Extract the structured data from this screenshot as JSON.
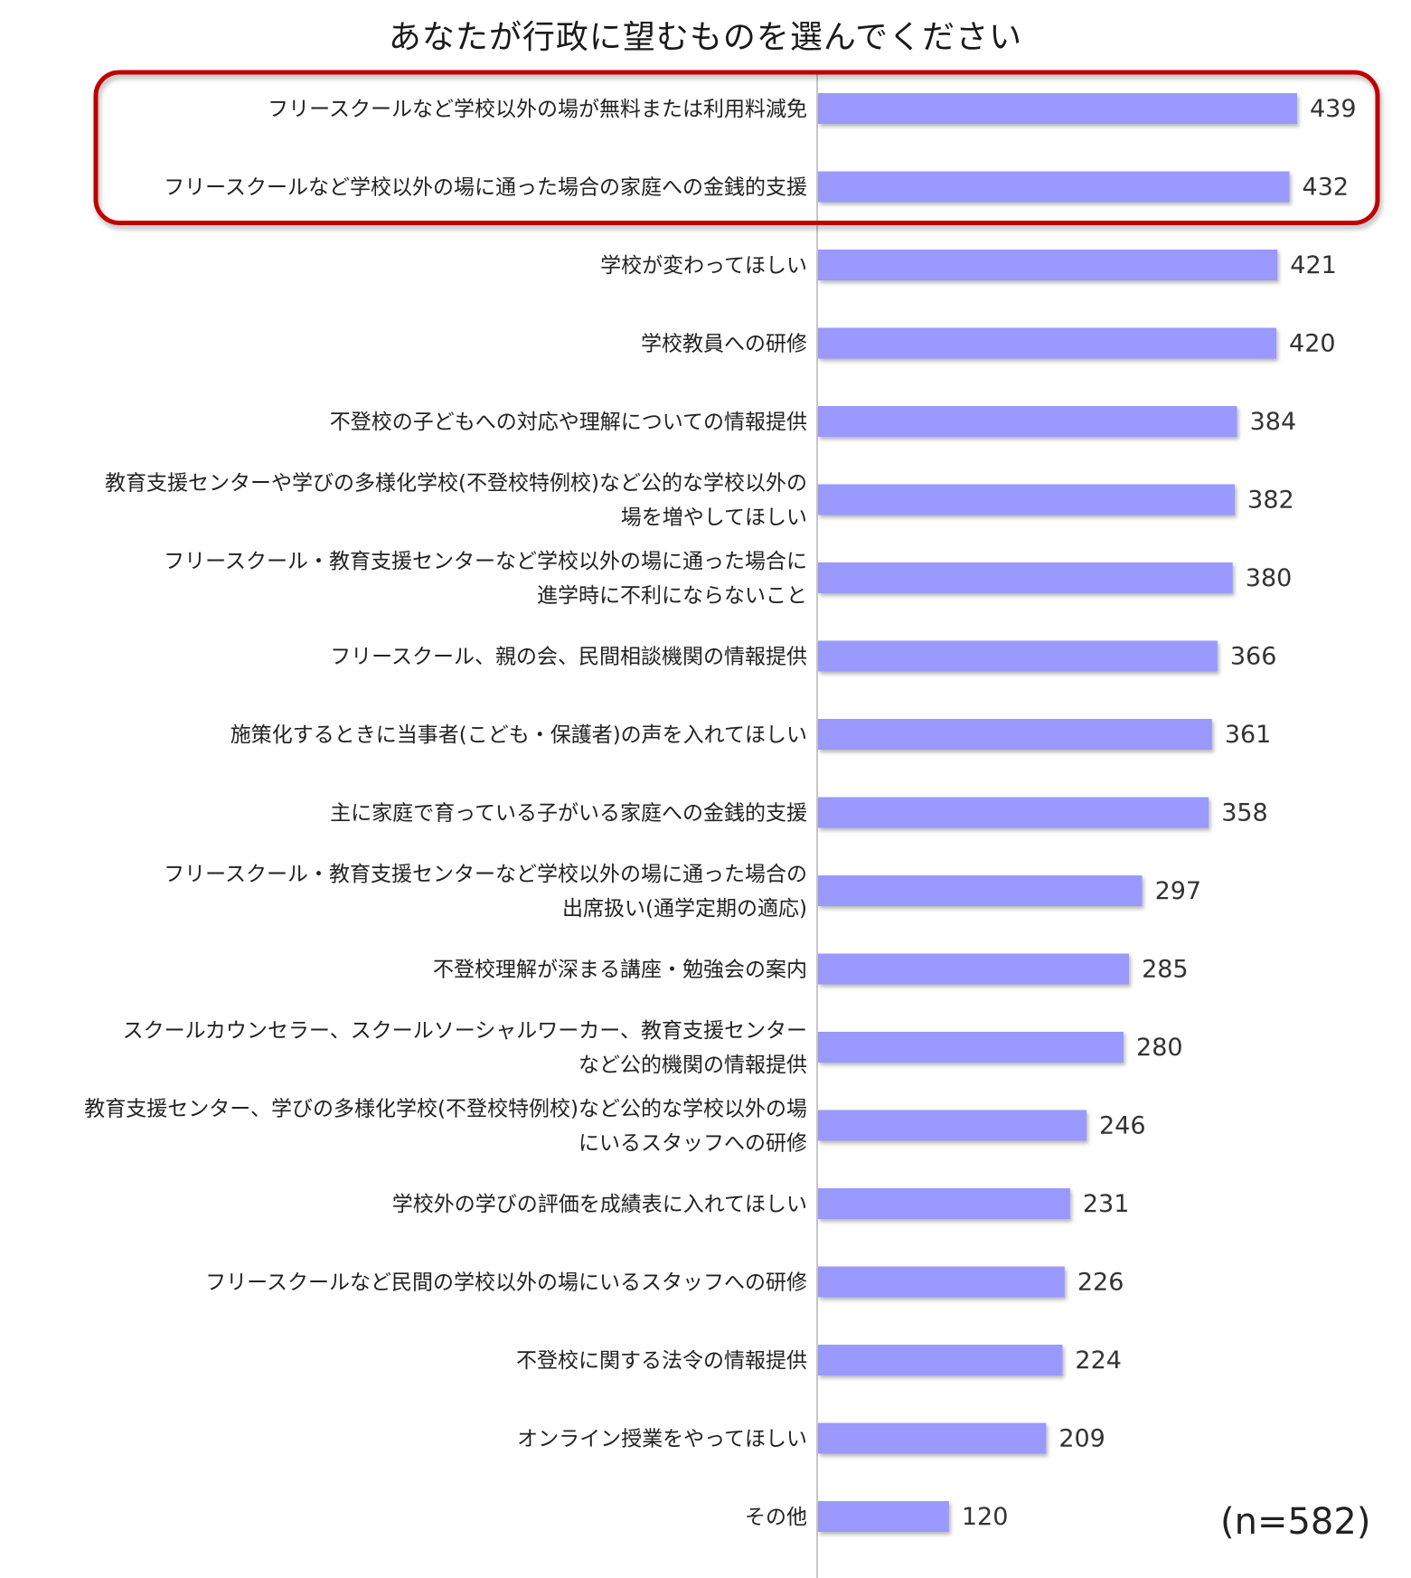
{
  "chart_data": {
    "type": "bar",
    "orientation": "horizontal",
    "title": "あなたが行政に望むものを選んでください",
    "note": "(n=582)",
    "bar_color": "#9999ff",
    "highlight_color": "#c00000",
    "highlighted_categories": [
      0,
      1
    ],
    "grid": false,
    "categories": [
      [
        "フリースクールなど学校以外の場が無料または利用料減免"
      ],
      [
        "フリースクールなど学校以外の場に通った場合の家庭への金銭的支援"
      ],
      [
        "学校が変わってほしい"
      ],
      [
        "学校教員への研修"
      ],
      [
        "不登校の子どもへの対応や理解についての情報提供"
      ],
      [
        "教育支援センターや学びの多様化学校(不登校特例校)など公的な学校以外の",
        "場を増やしてほしい"
      ],
      [
        "フリースクール・教育支援センターなど学校以外の場に通った場合に",
        "進学時に不利にならないこと"
      ],
      [
        "フリースクール、親の会、民間相談機関の情報提供"
      ],
      [
        "施策化するときに当事者(こども・保護者)の声を入れてほしい"
      ],
      [
        "主に家庭で育っている子がいる家庭への金銭的支援"
      ],
      [
        "フリースクール・教育支援センターなど学校以外の場に通った場合の",
        "出席扱い(通学定期の適応)"
      ],
      [
        "不登校理解が深まる講座・勉強会の案内"
      ],
      [
        "スクールカウンセラー、スクールソーシャルワーカー、教育支援センター",
        "など公的機関の情報提供"
      ],
      [
        "教育支援センター、学びの多様化学校(不登校特例校)など公的な学校以外の場",
        "にいるスタッフへの研修"
      ],
      [
        "学校外の学びの評価を成績表に入れてほしい"
      ],
      [
        "フリースクールなど民間の学校以外の場にいるスタッフへの研修"
      ],
      [
        "不登校に関する法令の情報提供"
      ],
      [
        "オンライン授業をやってほしい"
      ],
      [
        "その他"
      ]
    ],
    "values": [
      439,
      432,
      421,
      420,
      384,
      382,
      380,
      366,
      361,
      358,
      297,
      285,
      280,
      246,
      231,
      226,
      224,
      209,
      120
    ],
    "xlim": [
      0,
      500
    ]
  }
}
